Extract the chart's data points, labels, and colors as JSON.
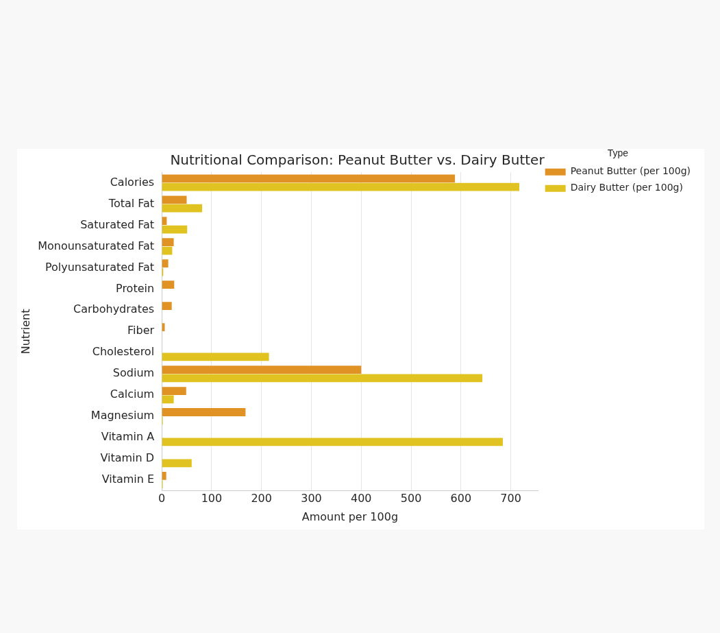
{
  "chart_data": {
    "type": "bar",
    "orientation": "horizontal",
    "title": "Nutritional Comparison: Peanut Butter vs. Dairy Butter",
    "xlabel": "Amount per 100g",
    "ylabel": "Nutrient",
    "legend_title": "Type",
    "legend": "right",
    "categories": [
      "Calories",
      "Total Fat",
      "Saturated Fat",
      "Monounsaturated Fat",
      "Polyunsaturated Fat",
      "Protein",
      "Carbohydrates",
      "Fiber",
      "Cholesterol",
      "Sodium",
      "Calcium",
      "Magnesium",
      "Vitamin A",
      "Vitamin D",
      "Vitamin E"
    ],
    "series": [
      {
        "name": "Peanut Butter (per 100g)",
        "color": "#e09225",
        "values": [
          588,
          50,
          10,
          24,
          13,
          25,
          20,
          6,
          0,
          400,
          49,
          168,
          0,
          0,
          9
        ]
      },
      {
        "name": "Dairy Butter (per 100g)",
        "color": "#e0c321",
        "values": [
          717,
          81,
          51,
          21,
          3,
          0,
          0,
          0,
          215,
          643,
          24,
          2,
          684,
          60,
          2
        ]
      }
    ],
    "xlim": [
      0,
      755
    ],
    "xticks": [
      0,
      100,
      200,
      300,
      400,
      500,
      600,
      700
    ],
    "grid": "x"
  }
}
